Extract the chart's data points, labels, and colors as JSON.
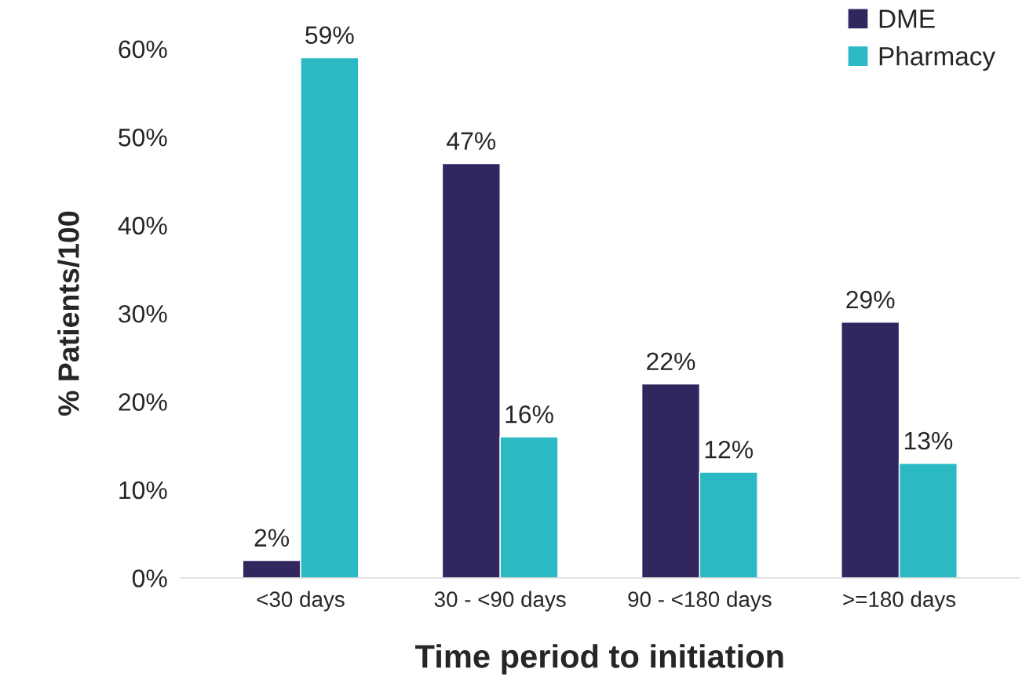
{
  "chart_data": {
    "type": "bar",
    "xlabel": "Time period to initiation",
    "ylabel": "% Patients/100",
    "categories": [
      "<30 days",
      "30 - <90 days",
      "90 - <180 days",
      ">=180 days"
    ],
    "series": [
      {
        "name": "DME",
        "color": "#31265e",
        "values": [
          2,
          47,
          22,
          29
        ],
        "value_labels": [
          "2%",
          "47%",
          "22%",
          "29%"
        ]
      },
      {
        "name": "Pharmacy",
        "color": "#2bbac4",
        "values": [
          59,
          16,
          12,
          13
        ],
        "value_labels": [
          "59%",
          "16%",
          "12%",
          "13%"
        ]
      }
    ],
    "ylim": [
      0,
      60
    ],
    "yticks": [
      {
        "value": 0,
        "label": "0%"
      },
      {
        "value": 10,
        "label": "10%"
      },
      {
        "value": 20,
        "label": "20%"
      },
      {
        "value": 30,
        "label": "30%"
      },
      {
        "value": 40,
        "label": "40%"
      },
      {
        "value": 50,
        "label": "50%"
      },
      {
        "value": 60,
        "label": "60%"
      }
    ],
    "grid": false,
    "legend": "top right"
  }
}
